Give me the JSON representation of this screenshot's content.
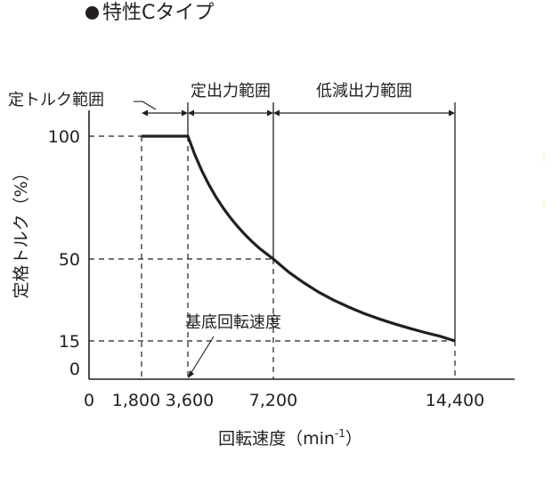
{
  "heading": "特性Cタイプ",
  "chart_data": {
    "type": "line",
    "title": "特性Cタイプ",
    "xlabel": "回転速度（min",
    "xlabel_unit_exp": "-1",
    "xlabel_close": "）",
    "ylabel": "定格トルク（%）",
    "xlim": [
      0,
      14400
    ],
    "ylim": [
      0,
      100
    ],
    "x_ticks": [
      {
        "value": 0,
        "label": "0"
      },
      {
        "value": 1800,
        "label": "1,800"
      },
      {
        "value": 3600,
        "label": "3,600"
      },
      {
        "value": 7200,
        "label": "7,200"
      },
      {
        "value": 14400,
        "label": "14,400"
      }
    ],
    "y_ticks": [
      {
        "value": 0,
        "label": "0"
      },
      {
        "value": 15,
        "label": "15"
      },
      {
        "value": 50,
        "label": "50"
      },
      {
        "value": 100,
        "label": "100"
      }
    ],
    "series": [
      {
        "x": [
          1800,
          3600,
          3900,
          4200,
          4500,
          4800,
          5100,
          5400,
          5700,
          6000,
          6300,
          6600,
          6900,
          7200,
          7800,
          8400,
          9000,
          9600,
          10200,
          10800,
          11400,
          12000,
          12600,
          13200,
          13800,
          14400
        ],
        "y": [
          100,
          100,
          92.3,
          85.7,
          80,
          75,
          70.6,
          66.7,
          63.2,
          60,
          57.1,
          54.5,
          52.2,
          50,
          44.5,
          39.9,
          35.8,
          32.4,
          29.4,
          26.7,
          24.4,
          22.3,
          20.4,
          18.6,
          17,
          15
        ]
      }
    ],
    "regions": [
      {
        "label": "定トルク範囲",
        "x_start": 1800,
        "x_end": 3600
      },
      {
        "label": "定出力範囲",
        "x_start": 3600,
        "x_end": 7200
      },
      {
        "label": "低減出力範囲",
        "x_start": 7200,
        "x_end": 14400
      }
    ],
    "annotations": [
      {
        "label": "基底回転速度",
        "x": 3600
      }
    ],
    "grid": false
  },
  "colors": {
    "ink": "#231f20",
    "background": "#ffffff",
    "edge_mark": "#f0e08a"
  },
  "edge_glyphs": [
    "⁝",
    "⁝"
  ]
}
